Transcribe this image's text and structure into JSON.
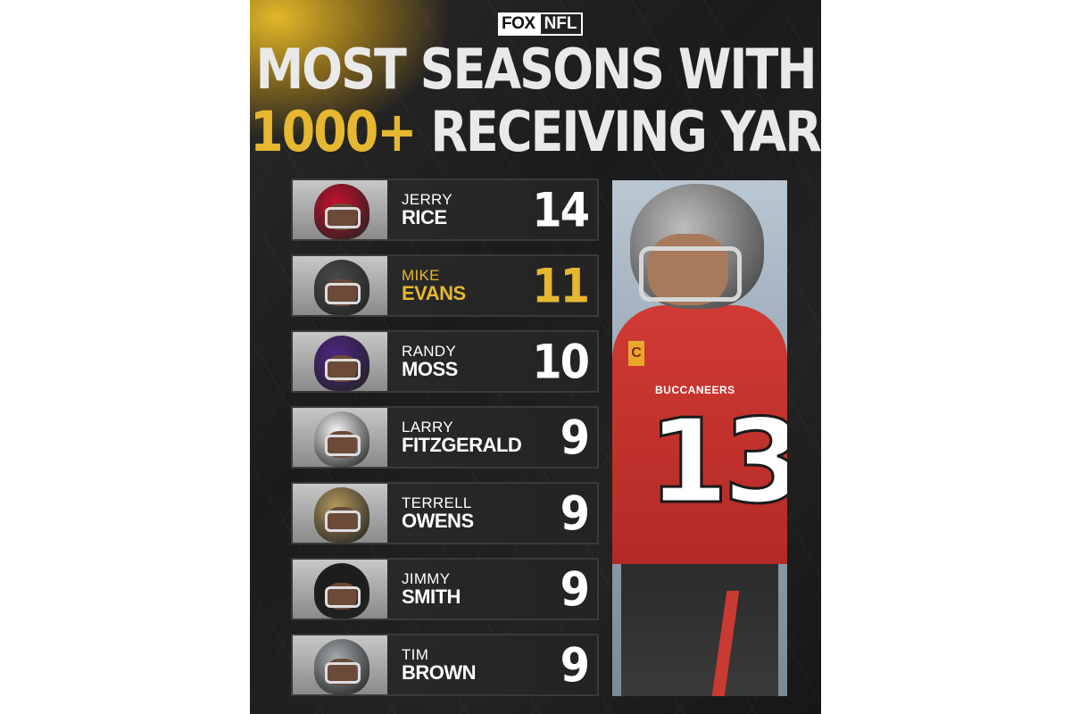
{
  "logo": {
    "fox": "FOX",
    "nfl": "NFL"
  },
  "title": {
    "line1": "MOST SEASONS WITH",
    "line2_highlight": "1000+",
    "line2_rest": " RECEIVING YARDS"
  },
  "colors": {
    "gold": "#e6b730",
    "white": "#ffffff",
    "background": "#1e1e1e"
  },
  "players": [
    {
      "first": "JERRY",
      "last": "RICE",
      "seasons": "14",
      "highlight": false,
      "helmet_color": "#c8102e"
    },
    {
      "first": "MIKE",
      "last": "EVANS",
      "seasons": "11",
      "highlight": true,
      "helmet_color": "#4a4a4a"
    },
    {
      "first": "RANDY",
      "last": "MOSS",
      "seasons": "10",
      "highlight": false,
      "helmet_color": "#4f2683"
    },
    {
      "first": "LARRY",
      "last": "FITZGERALD",
      "seasons": "9",
      "highlight": false,
      "helmet_color": "#f2f2f2"
    },
    {
      "first": "TERRELL",
      "last": "OWENS",
      "seasons": "9",
      "highlight": false,
      "helmet_color": "#b3995d"
    },
    {
      "first": "JIMMY",
      "last": "SMITH",
      "seasons": "9",
      "highlight": false,
      "helmet_color": "#1a1a1a"
    },
    {
      "first": "TIM",
      "last": "BROWN",
      "seasons": "9",
      "highlight": false,
      "helmet_color": "#a5acaf"
    }
  ],
  "hero": {
    "jersey_number": "13",
    "team_text": "BUCCANEERS",
    "captain_patch": "C"
  }
}
